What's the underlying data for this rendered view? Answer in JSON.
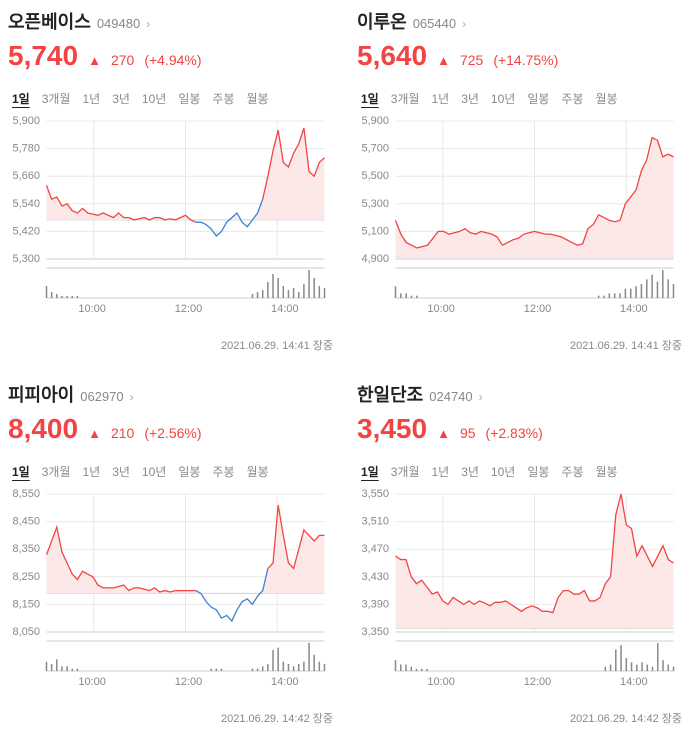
{
  "periods": [
    "1일",
    "3개월",
    "1년",
    "3년",
    "10년",
    "일봉",
    "주봉",
    "월봉"
  ],
  "active_period_index": 0,
  "xaxis_labels": [
    "10:00",
    "12:00",
    "14:00"
  ],
  "xaxis_positions": [
    0.17,
    0.5,
    0.83
  ],
  "colors": {
    "up": "#f24443",
    "fill": "#fde8e8",
    "alt_line": "#3b82d6",
    "grid": "#e8e8e8",
    "axis": "#cccccc",
    "volume": "#888888",
    "prev_close_guide": "#d0d0d0"
  },
  "stocks": [
    {
      "name": "오픈베이스",
      "code": "049480",
      "price": "5,740",
      "change": "270",
      "pct": "+4.94%",
      "timestamp": "2021.06.29. 14:41 장중",
      "ymin": 5300,
      "ymax": 5900,
      "ystep": 120,
      "prev_close": 5470,
      "series": [
        5620,
        5560,
        5570,
        5530,
        5540,
        5510,
        5500,
        5520,
        5500,
        5495,
        5490,
        5500,
        5490,
        5480,
        5500,
        5480,
        5480,
        5470,
        5475,
        5480,
        5470,
        5480,
        5480,
        5470,
        5475,
        5470,
        5480,
        5490,
        5470,
        5460,
        5460,
        5450,
        5430,
        5400,
        5420,
        5460,
        5480,
        5500,
        5460,
        5440,
        5470,
        5500,
        5560,
        5660,
        5770,
        5860,
        5720,
        5700,
        5760,
        5800,
        5870,
        5680,
        5660,
        5720,
        5740
      ],
      "alt_segment": {
        "start_idx": 30,
        "end_idx": 42
      },
      "volumes": [
        6,
        3,
        2,
        1,
        1,
        1,
        1,
        0,
        0,
        0,
        0,
        0,
        0,
        0,
        0,
        0,
        0,
        0,
        0,
        0,
        0,
        0,
        0,
        0,
        0,
        0,
        0,
        0,
        0,
        0,
        0,
        0,
        0,
        0,
        0,
        0,
        0,
        0,
        0,
        0,
        2,
        3,
        4,
        8,
        12,
        10,
        6,
        4,
        5,
        3,
        7,
        14,
        10,
        6,
        5
      ]
    },
    {
      "name": "이루온",
      "code": "065440",
      "price": "5,640",
      "change": "725",
      "pct": "+14.75%",
      "timestamp": "2021.06.29. 14:41 장중",
      "ymin": 4900,
      "ymax": 5900,
      "ystep": 200,
      "prev_close": 4915,
      "series": [
        5180,
        5080,
        5020,
        5000,
        4980,
        4990,
        5000,
        5050,
        5100,
        5100,
        5080,
        5090,
        5100,
        5120,
        5090,
        5080,
        5100,
        5090,
        5080,
        5060,
        5000,
        5020,
        5040,
        5050,
        5080,
        5090,
        5100,
        5090,
        5080,
        5080,
        5070,
        5060,
        5040,
        5020,
        5000,
        5010,
        5120,
        5150,
        5220,
        5200,
        5180,
        5170,
        5180,
        5300,
        5350,
        5400,
        5540,
        5620,
        5780,
        5760,
        5640,
        5660,
        5640
      ],
      "volumes": [
        5,
        2,
        2,
        1,
        1,
        0,
        0,
        0,
        0,
        0,
        0,
        0,
        0,
        0,
        0,
        0,
        0,
        0,
        0,
        0,
        0,
        0,
        0,
        0,
        0,
        0,
        0,
        0,
        0,
        0,
        0,
        0,
        0,
        0,
        0,
        0,
        0,
        0,
        1,
        1,
        2,
        2,
        2,
        4,
        4,
        5,
        6,
        8,
        10,
        7,
        12,
        8,
        6
      ]
    },
    {
      "name": "피피아이",
      "code": "062970",
      "price": "8,400",
      "change": "210",
      "pct": "+2.56%",
      "timestamp": "2021.06.29. 14:42 장중",
      "ymin": 8050,
      "ymax": 8550,
      "ystep": 100,
      "prev_close": 8190,
      "series": [
        8330,
        8380,
        8430,
        8340,
        8300,
        8260,
        8240,
        8270,
        8260,
        8250,
        8220,
        8210,
        8210,
        8210,
        8215,
        8220,
        8200,
        8210,
        8210,
        8205,
        8200,
        8210,
        8195,
        8200,
        8195,
        8200,
        8200,
        8200,
        8200,
        8200,
        8190,
        8160,
        8140,
        8130,
        8100,
        8110,
        8090,
        8130,
        8160,
        8170,
        8150,
        8180,
        8200,
        8280,
        8300,
        8510,
        8400,
        8300,
        8280,
        8350,
        8420,
        8400,
        8380,
        8400,
        8400
      ],
      "alt_segment": {
        "start_idx": 30,
        "end_idx": 43
      },
      "volumes": [
        4,
        3,
        5,
        2,
        2,
        1,
        1,
        0,
        0,
        0,
        0,
        0,
        0,
        0,
        0,
        0,
        0,
        0,
        0,
        0,
        0,
        0,
        0,
        0,
        0,
        0,
        0,
        0,
        0,
        0,
        0,
        0,
        1,
        1,
        1,
        0,
        0,
        0,
        0,
        0,
        1,
        1,
        2,
        3,
        9,
        10,
        4,
        3,
        2,
        3,
        4,
        12,
        7,
        4,
        3
      ]
    },
    {
      "name": "한일단조",
      "code": "024740",
      "price": "3,450",
      "change": "95",
      "pct": "+2.83%",
      "timestamp": "2021.06.29. 14:42 장중",
      "ymin": 3350,
      "ymax": 3550,
      "ystep": 40,
      "prev_close": 3355,
      "series": [
        3460,
        3455,
        3455,
        3430,
        3420,
        3425,
        3415,
        3405,
        3408,
        3395,
        3390,
        3400,
        3395,
        3390,
        3395,
        3390,
        3395,
        3392,
        3388,
        3393,
        3393,
        3395,
        3390,
        3385,
        3380,
        3385,
        3388,
        3385,
        3380,
        3380,
        3378,
        3400,
        3410,
        3410,
        3405,
        3405,
        3410,
        3395,
        3395,
        3400,
        3420,
        3430,
        3520,
        3550,
        3505,
        3500,
        3460,
        3475,
        3460,
        3445,
        3460,
        3475,
        3455,
        3450
      ],
      "volumes": [
        5,
        3,
        3,
        2,
        1,
        1,
        1,
        0,
        0,
        0,
        0,
        0,
        0,
        0,
        0,
        0,
        0,
        0,
        0,
        0,
        0,
        0,
        0,
        0,
        0,
        0,
        0,
        0,
        0,
        0,
        0,
        0,
        0,
        0,
        0,
        0,
        0,
        0,
        0,
        0,
        2,
        3,
        10,
        12,
        6,
        4,
        3,
        4,
        3,
        2,
        13,
        5,
        3,
        2
      ]
    }
  ]
}
